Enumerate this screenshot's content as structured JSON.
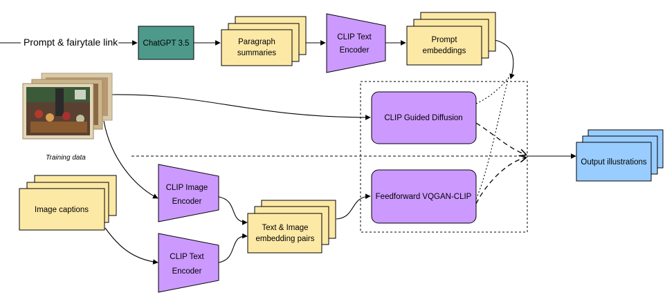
{
  "colors": {
    "yellow_fill": "#fde9a6",
    "yellow_stroke": "#000000",
    "teal_fill": "#4d9a8a",
    "purple_fill": "#cc99ff",
    "blue_fill": "#99ccff",
    "line": "#000000"
  },
  "input": {
    "prompt_label": "Prompt & fairytale link"
  },
  "chatgpt": {
    "label": "ChatGPT 3.5"
  },
  "paragraphs": {
    "line1": "Paragraph",
    "line2": "summaries"
  },
  "clip_text_top": {
    "line1": "CLIP Text",
    "line2": "Encoder"
  },
  "prompt_embeddings": {
    "line1": "Prompt",
    "line2": "embeddings"
  },
  "training": {
    "caption": "Training data"
  },
  "clip_guided": {
    "label": "CLIP Guided Diffusion"
  },
  "vqgan": {
    "label": "Feedforward VQGAN-CLIP"
  },
  "output": {
    "label": "Output illustrations"
  },
  "image_captions": {
    "label": "Image captions"
  },
  "clip_image": {
    "line1": "CLIP Image",
    "line2": "Encoder"
  },
  "pairs": {
    "line1": "Text & Image",
    "line2": "embedding pairs"
  },
  "clip_text_bottom": {
    "line1": "CLIP Text",
    "line2": "Encoder"
  }
}
